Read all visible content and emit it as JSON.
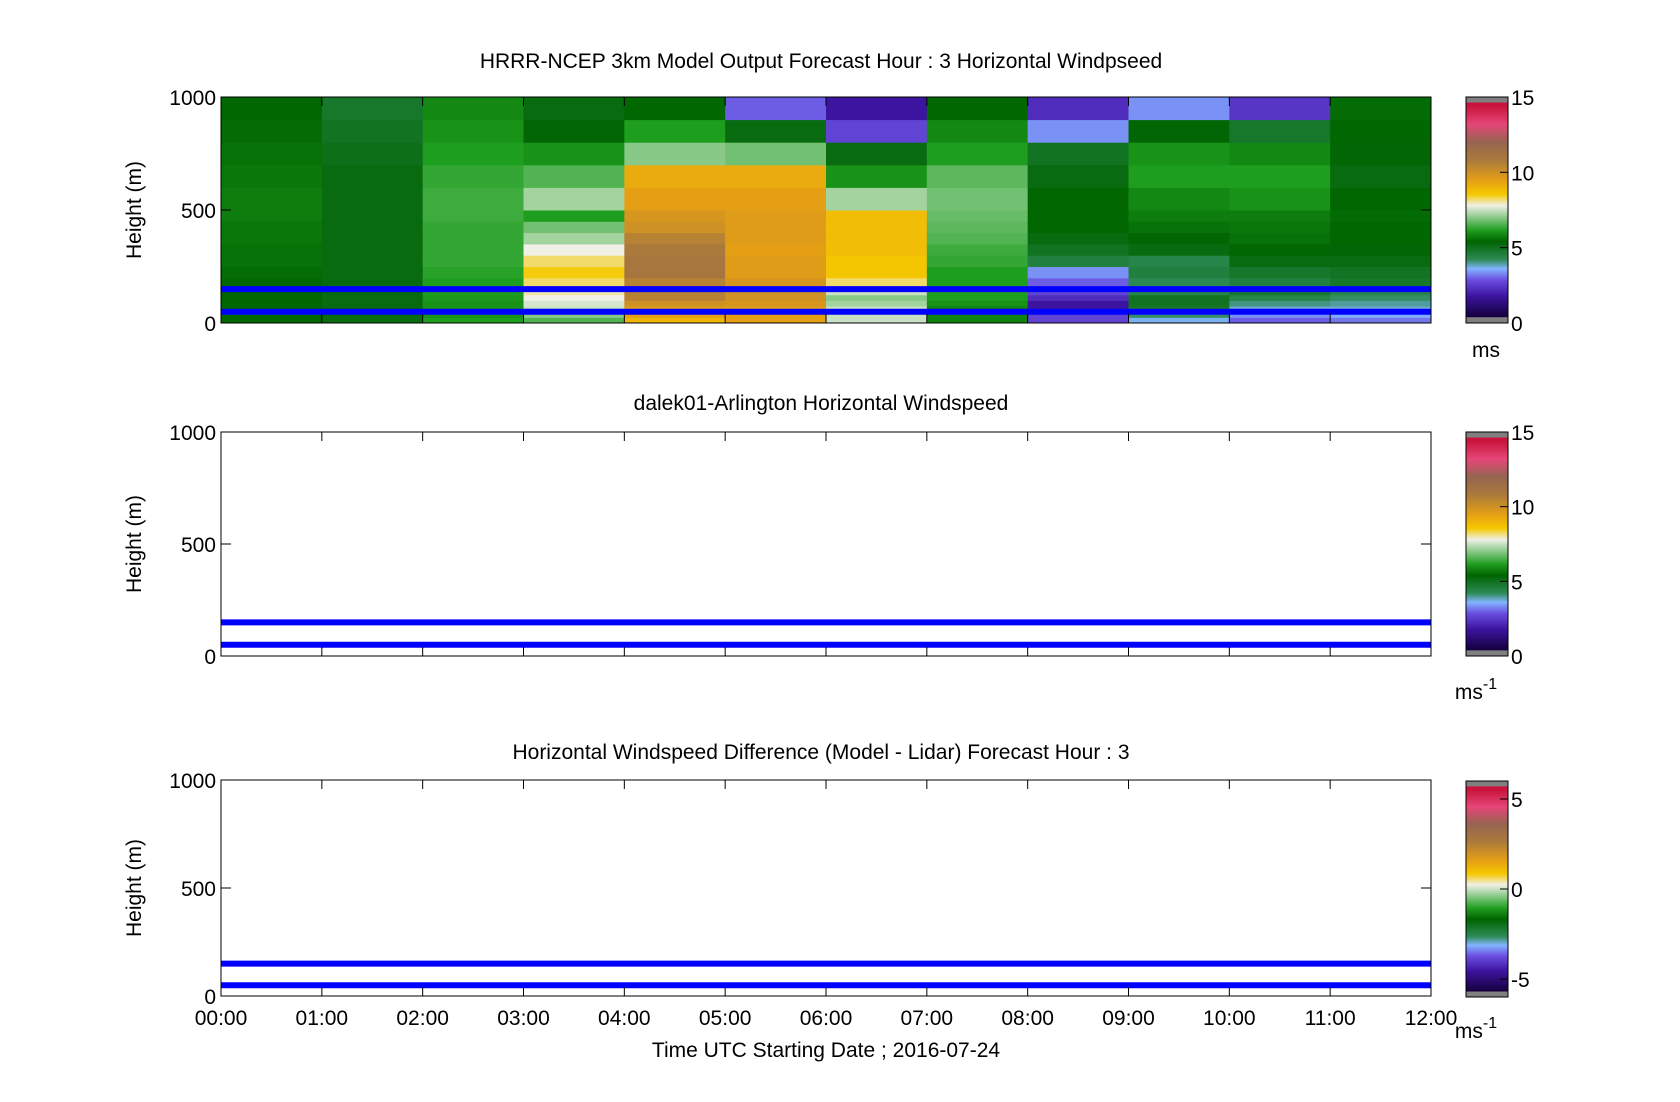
{
  "colors": {
    "background": "#ffffff",
    "marker_line": "#0000ff",
    "axis": "#000000"
  },
  "chart_data": [
    {
      "type": "heatmap",
      "title": "HRRR-NCEP 3km Model Output   Forecast Hour : 3 Horizontal Windpseed",
      "ylabel": "Height (m)",
      "xlabel": "",
      "ylim": [
        0,
        1000
      ],
      "yticks": [
        0,
        500,
        1000
      ],
      "xlim": [
        "00:00",
        "12:00"
      ],
      "xticks": [
        "00:00",
        "01:00",
        "02:00",
        "03:00",
        "04:00",
        "05:00",
        "06:00",
        "07:00",
        "08:00",
        "09:00",
        "10:00",
        "11:00",
        "12:00"
      ],
      "show_xtick_labels": false,
      "time_columns": [
        "00:00",
        "01:00",
        "02:00",
        "03:00",
        "04:00",
        "05:00",
        "06:00",
        "07:00",
        "08:00",
        "09:00",
        "10:00",
        "11:00"
      ],
      "height_levels_m": [
        0,
        25,
        50,
        75,
        100,
        125,
        150,
        200,
        250,
        300,
        350,
        400,
        450,
        500,
        600,
        700,
        800,
        900,
        1000
      ],
      "windspeed_ms": [
        [
          5.0,
          4.8,
          6.0,
          6.5,
          9.0,
          9.5,
          7.5,
          5.5,
          2.5,
          3.5,
          2.8,
          3.0
        ],
        [
          5.0,
          4.8,
          5.8,
          7.0,
          9.5,
          9.5,
          7.5,
          5.5,
          2.5,
          4.0,
          3.2,
          3.4
        ],
        [
          5.0,
          4.8,
          5.8,
          7.5,
          9.5,
          9.5,
          7.5,
          5.5,
          1.5,
          4.5,
          3.6,
          3.6
        ],
        [
          5.0,
          4.8,
          5.8,
          7.6,
          10.0,
          9.8,
          7.2,
          5.8,
          1.5,
          4.6,
          3.9,
          3.8
        ],
        [
          5.0,
          4.8,
          5.9,
          7.8,
          10.5,
          10.0,
          7.0,
          6.0,
          2.0,
          4.6,
          4.2,
          4.0
        ],
        [
          5.0,
          4.8,
          6.0,
          8.0,
          10.5,
          10.0,
          7.5,
          6.0,
          2.5,
          4.2,
          4.5,
          4.2
        ],
        [
          5.0,
          4.8,
          6.0,
          8.2,
          10.5,
          9.8,
          8.2,
          6.0,
          2.8,
          4.1,
          4.3,
          4.5
        ],
        [
          5.1,
          4.8,
          6.1,
          8.5,
          11.0,
          9.6,
          8.6,
          6.0,
          3.2,
          4.3,
          4.5,
          4.6
        ],
        [
          5.2,
          4.8,
          6.2,
          8.2,
          11.0,
          9.6,
          8.6,
          6.2,
          4.3,
          4.2,
          4.8,
          4.8
        ],
        [
          5.2,
          4.8,
          6.2,
          7.8,
          10.8,
          9.5,
          8.8,
          6.3,
          4.6,
          4.8,
          5.0,
          4.9
        ],
        [
          5.3,
          4.8,
          6.2,
          7.2,
          10.5,
          9.6,
          8.8,
          6.5,
          4.8,
          4.9,
          5.2,
          5.0
        ],
        [
          5.3,
          4.8,
          6.2,
          6.8,
          10.0,
          9.6,
          8.8,
          6.6,
          5.0,
          5.2,
          5.3,
          5.0
        ],
        [
          5.4,
          4.8,
          6.3,
          6.0,
          9.8,
          9.6,
          8.8,
          6.7,
          5.0,
          5.4,
          5.4,
          5.1
        ],
        [
          5.4,
          4.8,
          6.3,
          7.2,
          9.5,
          9.5,
          7.2,
          6.8,
          5.0,
          5.6,
          5.8,
          5.0
        ],
        [
          5.3,
          4.8,
          6.2,
          6.5,
          9.2,
          9.2,
          5.8,
          6.6,
          4.8,
          6.0,
          6.0,
          4.8
        ],
        [
          5.2,
          4.7,
          6.0,
          5.8,
          7.0,
          6.8,
          4.8,
          6.0,
          4.6,
          5.8,
          5.6,
          4.9
        ],
        [
          5.1,
          4.6,
          5.8,
          4.9,
          6.0,
          4.8,
          2.5,
          5.6,
          3.2,
          4.9,
          4.5,
          5.0
        ],
        [
          5.0,
          4.5,
          5.6,
          4.8,
          5.0,
          2.8,
          1.5,
          5.0,
          2.0,
          3.2,
          2.2,
          5.1
        ]
      ],
      "marker_lines_m": [
        50,
        150
      ],
      "colorbar": {
        "min": 0,
        "max": 15,
        "ticks": [
          0,
          5,
          10,
          15
        ],
        "unit_label": "ms"
      }
    },
    {
      "type": "heatmap",
      "title": "dalek01-Arlington  Horizontal Windspeed",
      "ylabel": "Height (m)",
      "xlabel": "",
      "ylim": [
        0,
        1000
      ],
      "yticks": [
        0,
        500,
        1000
      ],
      "xlim": [
        "00:00",
        "12:00"
      ],
      "xticks": [
        "00:00",
        "01:00",
        "02:00",
        "03:00",
        "04:00",
        "05:00",
        "06:00",
        "07:00",
        "08:00",
        "09:00",
        "10:00",
        "11:00",
        "12:00"
      ],
      "show_xtick_labels": false,
      "windspeed_ms": [],
      "marker_lines_m": [
        50,
        150
      ],
      "colorbar": {
        "min": 0,
        "max": 15,
        "ticks": [
          0,
          5,
          10,
          15
        ],
        "unit_label": "ms",
        "unit_exp": "-1"
      }
    },
    {
      "type": "heatmap",
      "title": "Horizontal Windspeed Difference (Model - Lidar) Forecast Hour : 3",
      "ylabel": "Height (m)",
      "xlabel": "Time UTC  Starting Date ; 2016-07-24",
      "ylim": [
        0,
        1000
      ],
      "yticks": [
        0,
        500,
        1000
      ],
      "xlim": [
        "00:00",
        "12:00"
      ],
      "xticks": [
        "00:00",
        "01:00",
        "02:00",
        "03:00",
        "04:00",
        "05:00",
        "06:00",
        "07:00",
        "08:00",
        "09:00",
        "10:00",
        "11:00",
        "12:00"
      ],
      "show_xtick_labels": true,
      "difference_ms": [],
      "marker_lines_m": [
        50,
        150
      ],
      "colorbar": {
        "min": -6,
        "max": 6,
        "ticks": [
          -5,
          0,
          5
        ],
        "unit_label": "ms",
        "unit_exp": "-1"
      }
    }
  ]
}
